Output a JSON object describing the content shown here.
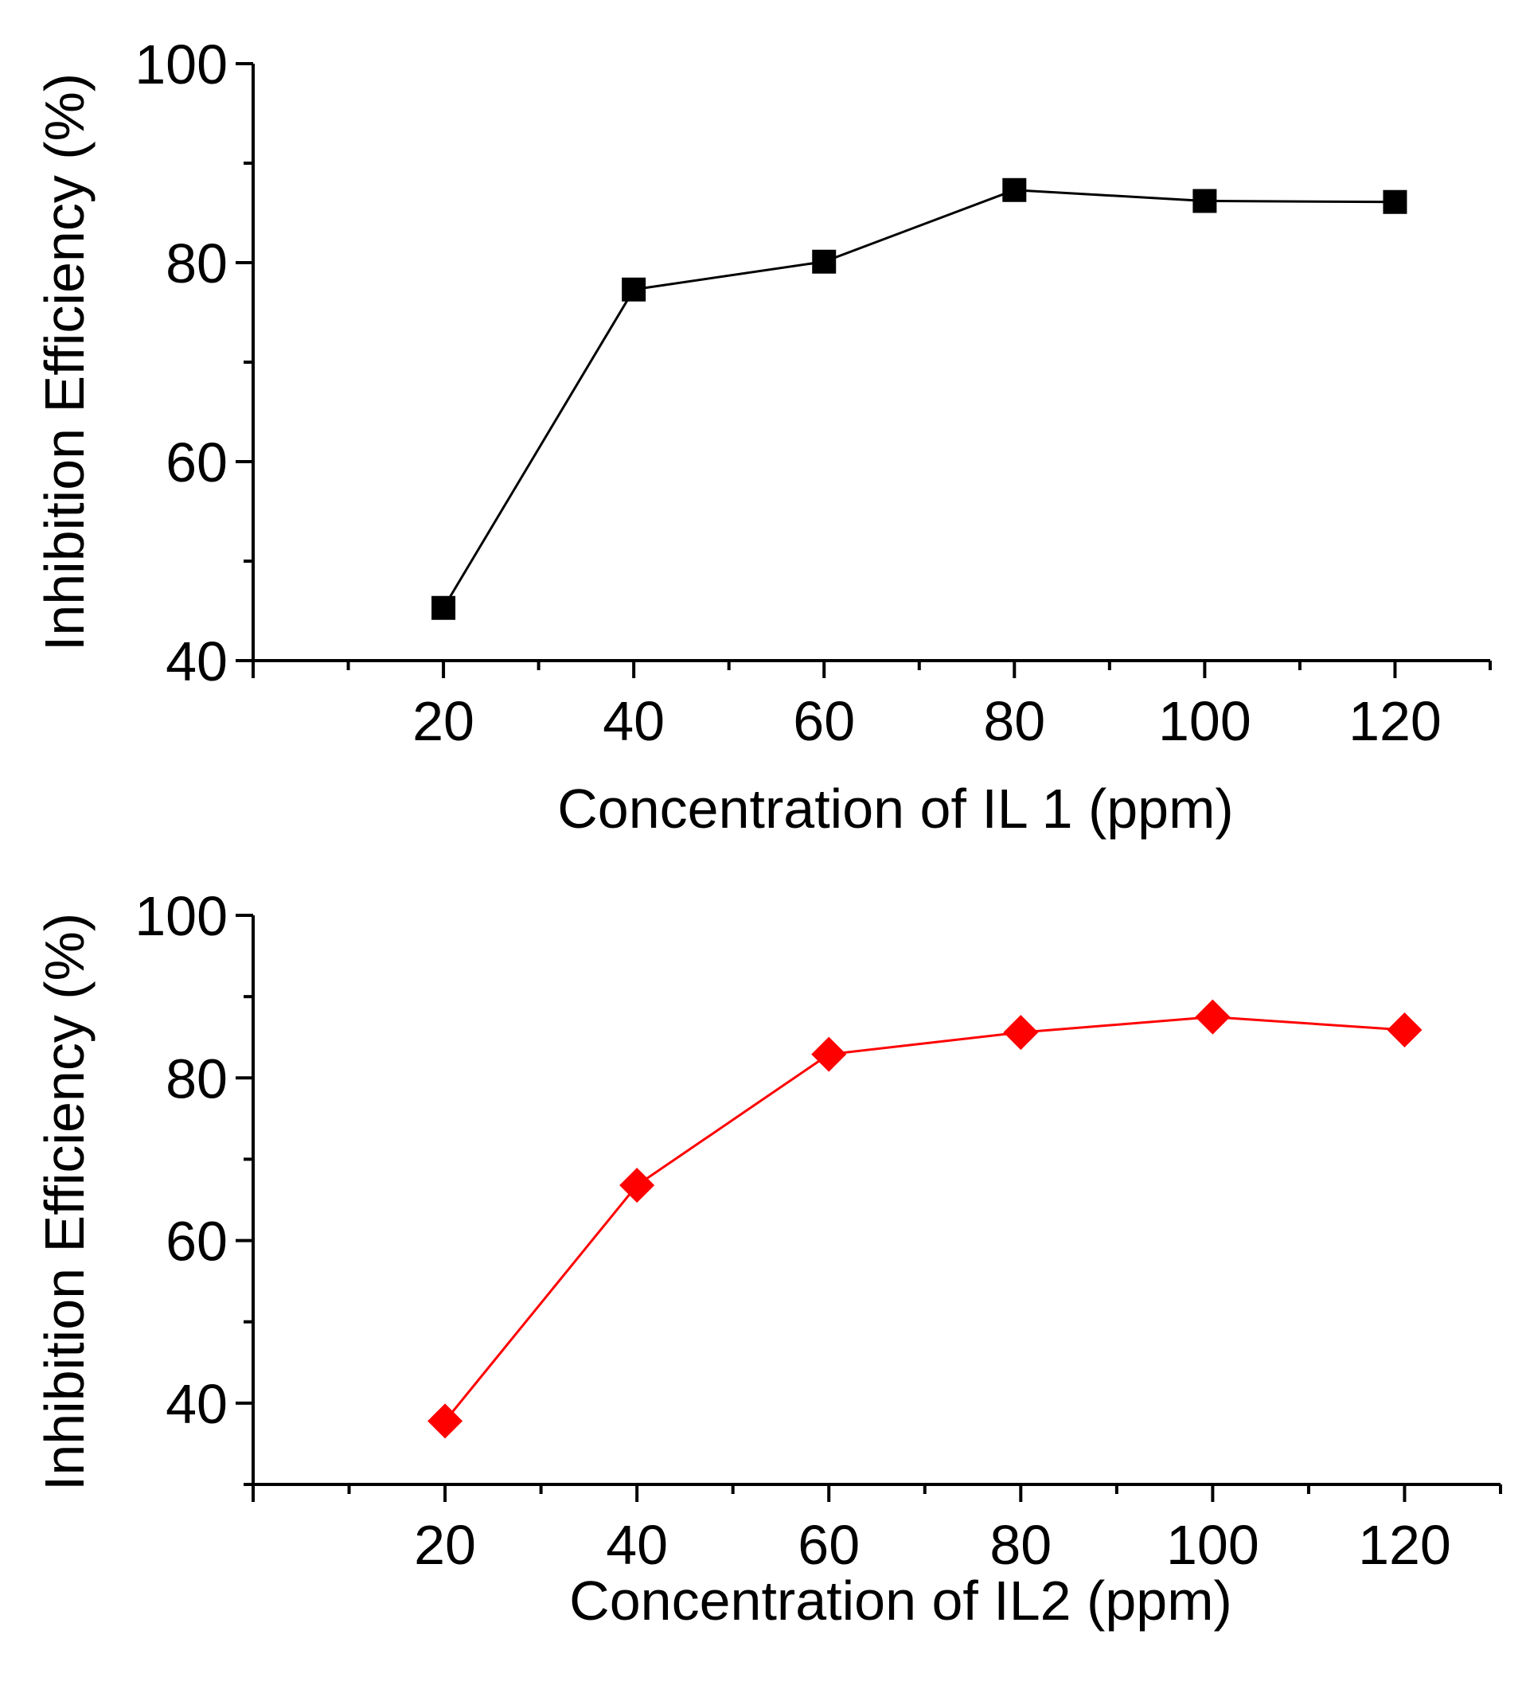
{
  "chart_data": [
    {
      "type": "line",
      "title": "",
      "xlabel": "Concentration of IL 1 (ppm)",
      "ylabel": "Inhibition Efficiency (%)",
      "xlim": [
        0,
        130
      ],
      "ylim": [
        40,
        100
      ],
      "xticks": [
        20,
        40,
        60,
        80,
        100,
        120
      ],
      "xtick_labels": [
        "20",
        "40",
        "60",
        "80",
        "100",
        "120"
      ],
      "xminor": [
        10,
        30,
        50,
        70,
        90,
        110,
        130
      ],
      "yticks": [
        40,
        60,
        80,
        100
      ],
      "ytick_labels": [
        "40",
        "60",
        "80",
        "100"
      ],
      "yminor": [
        50,
        70,
        90
      ],
      "grid": false,
      "series": [
        {
          "name": "IL 1",
          "color": "#000000",
          "marker": "square",
          "x": [
            20,
            40,
            60,
            80,
            100,
            120
          ],
          "values": [
            45.3,
            77.3,
            80.1,
            87.3,
            86.2,
            86.1
          ]
        }
      ]
    },
    {
      "type": "line",
      "title": "",
      "xlabel": "Concentration of IL2 (ppm)",
      "ylabel": "Inhibition Efficiency (%)",
      "xlim": [
        0,
        130
      ],
      "ylim": [
        30,
        100
      ],
      "xticks": [
        20,
        40,
        60,
        80,
        100,
        120
      ],
      "xtick_labels": [
        "20",
        "40",
        "60",
        "80",
        "100",
        "120"
      ],
      "xminor": [
        10,
        30,
        50,
        70,
        90,
        110,
        130
      ],
      "yticks": [
        40,
        60,
        80,
        100
      ],
      "ytick_labels": [
        "40",
        "60",
        "80",
        "100"
      ],
      "yminor": [
        30,
        50,
        70,
        90
      ],
      "grid": false,
      "series": [
        {
          "name": "IL2",
          "color": "#ff0000",
          "marker": "diamond",
          "x": [
            20,
            40,
            60,
            80,
            100,
            120
          ],
          "values": [
            37.8,
            66.8,
            82.9,
            85.6,
            87.5,
            85.9
          ]
        }
      ]
    }
  ]
}
